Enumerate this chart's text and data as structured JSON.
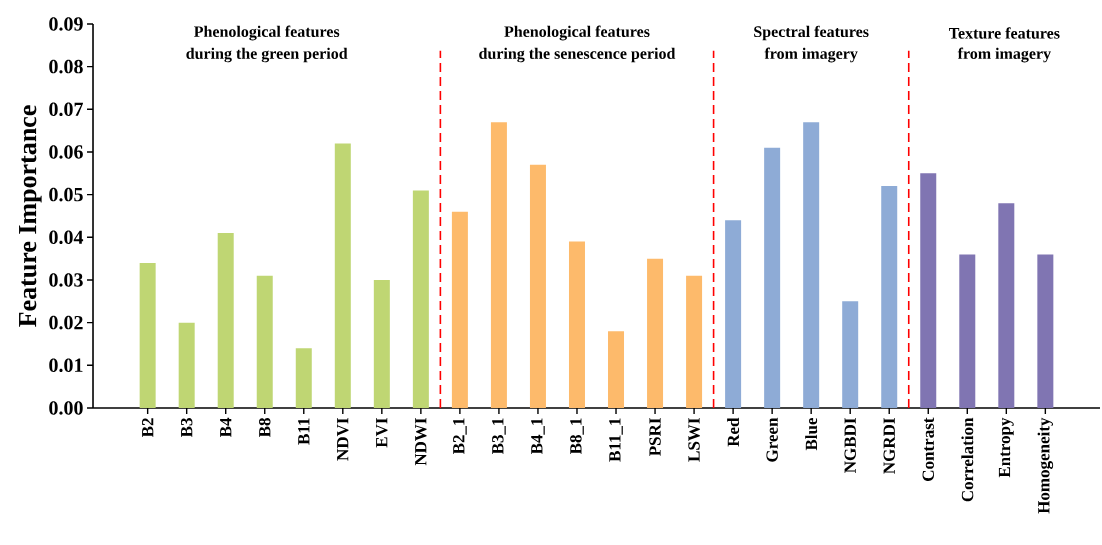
{
  "chart_data": {
    "type": "bar",
    "ylabel": "Feature Importance",
    "categories": [
      "B2",
      "B3",
      "B4",
      "B8",
      "B11",
      "NDVI",
      "EVI",
      "NDWI",
      "B2_1",
      "B3_1",
      "B4_1",
      "B8_1",
      "B11_1",
      "PSRI",
      "LSWI",
      "Red",
      "Green",
      "Blue",
      "NGBDI",
      "NGRDI",
      "Contrast",
      "Correlation",
      "Entropy",
      "Homogeneity"
    ],
    "values": [
      0.034,
      0.02,
      0.041,
      0.031,
      0.014,
      0.062,
      0.03,
      0.051,
      0.046,
      0.067,
      0.057,
      0.039,
      0.018,
      0.035,
      0.031,
      0.044,
      0.061,
      0.067,
      0.025,
      0.052,
      0.055,
      0.036,
      0.048,
      0.036
    ],
    "colors": [
      "#bfd673",
      "#bfd673",
      "#bfd673",
      "#bfd673",
      "#bfd673",
      "#bfd673",
      "#bfd673",
      "#bfd673",
      "#fdba6b",
      "#fdba6b",
      "#fdba6b",
      "#fdba6b",
      "#fdba6b",
      "#fdba6b",
      "#fdba6b",
      "#8eabd6",
      "#8eabd6",
      "#8eabd6",
      "#8eabd6",
      "#8eabd6",
      "#8075b2",
      "#8075b2",
      "#8075b2",
      "#8075b2"
    ],
    "ylim": [
      0,
      0.09
    ],
    "yticks": [
      {
        "value": 0,
        "label": "0.00"
      },
      0.01,
      0.02,
      0.03,
      0.04,
      0.05,
      0.06,
      0.07,
      0.08,
      0.09
    ],
    "annotations": [
      "Phenological features",
      "during the green period",
      "Phenological features",
      "during the senescence period",
      "Spectral features",
      "from imagery",
      "Texture features",
      "from imagery"
    ]
  }
}
